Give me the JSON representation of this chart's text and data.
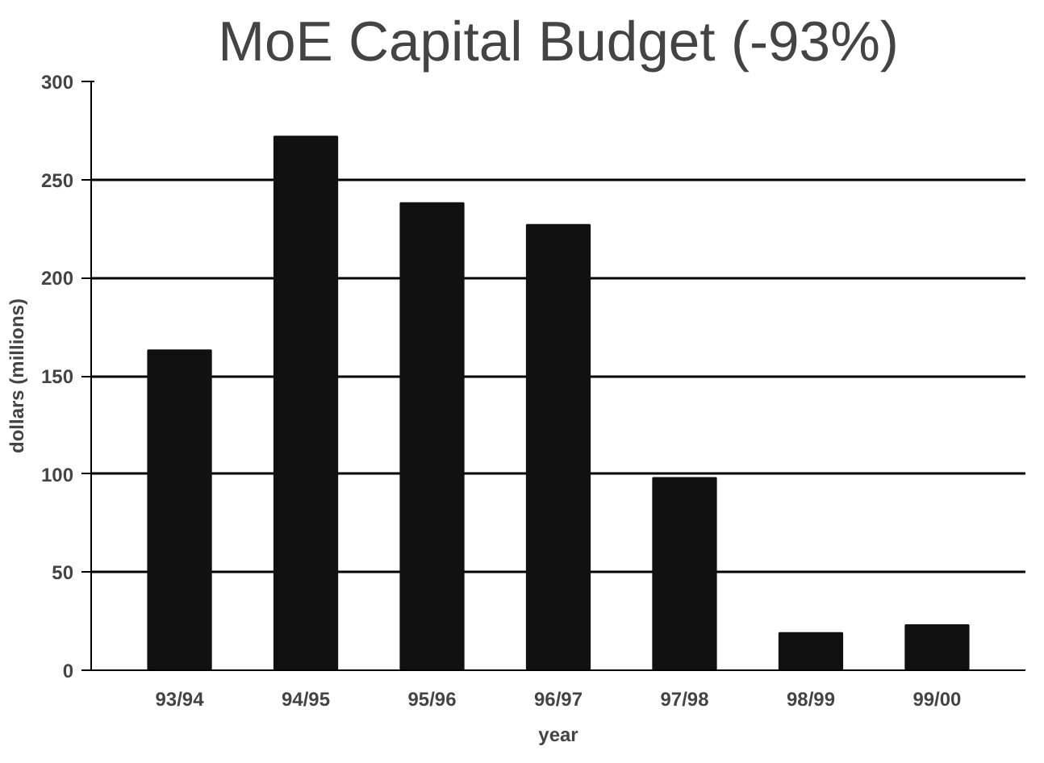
{
  "chart_data": {
    "type": "bar",
    "title": "MoE Capital Budget (-93%)",
    "xlabel": "year",
    "ylabel": "dollars (millions)",
    "categories": [
      "93/94",
      "94/95",
      "95/96",
      "96/97",
      "97/98",
      "98/99",
      "99/00"
    ],
    "values": [
      163,
      272,
      238,
      227,
      98,
      19,
      23
    ],
    "color": "#111111",
    "ylim": [
      0,
      300
    ],
    "yticks": [
      0,
      50,
      100,
      150,
      200,
      250,
      300
    ],
    "grid": "y"
  }
}
